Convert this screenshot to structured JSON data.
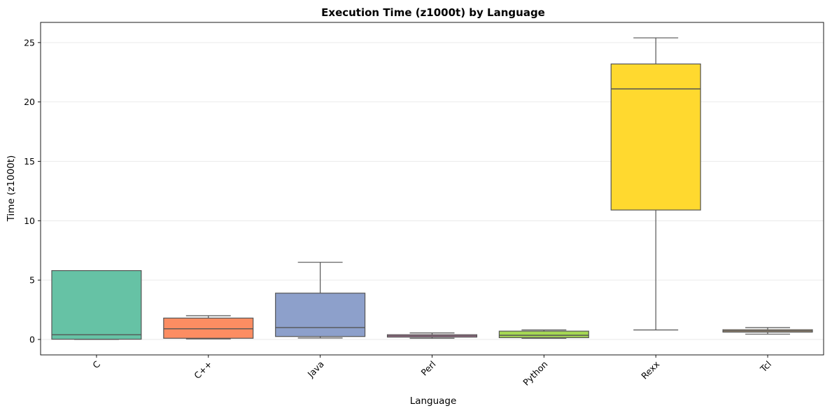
{
  "chart_data": {
    "type": "box",
    "title": "Execution Time (z1000t) by Language",
    "xlabel": "Language",
    "ylabel": "Time (z1000t)",
    "ylim": [
      -1.3,
      26.7
    ],
    "yticks": [
      0,
      5,
      10,
      15,
      20,
      25
    ],
    "grid": "y",
    "categories": [
      "C",
      "C++",
      "Java",
      "Perl",
      "Python",
      "Rexx",
      "Tcl"
    ],
    "boxes": [
      {
        "whisker_low": 0.0,
        "q1": 0.02,
        "median": 0.4,
        "q3": 5.8,
        "whisker_high": 5.8,
        "color": "#66c2a5"
      },
      {
        "whisker_low": 0.05,
        "q1": 0.1,
        "median": 0.9,
        "q3": 1.8,
        "whisker_high": 2.0,
        "color": "#fc8d62"
      },
      {
        "whisker_low": 0.12,
        "q1": 0.25,
        "median": 1.0,
        "q3": 3.9,
        "whisker_high": 6.5,
        "color": "#8da0cb"
      },
      {
        "whisker_low": 0.1,
        "q1": 0.2,
        "median": 0.3,
        "q3": 0.4,
        "whisker_high": 0.55,
        "color": "#e78ac3"
      },
      {
        "whisker_low": 0.1,
        "q1": 0.15,
        "median": 0.35,
        "q3": 0.7,
        "whisker_high": 0.8,
        "color": "#a6d854"
      },
      {
        "whisker_low": 0.8,
        "q1": 10.9,
        "median": 21.1,
        "q3": 23.2,
        "whisker_high": 25.4,
        "color": "#ffd92f"
      },
      {
        "whisker_low": 0.45,
        "q1": 0.62,
        "median": 0.72,
        "q3": 0.82,
        "whisker_high": 1.0,
        "color": "#e5c494"
      }
    ]
  }
}
